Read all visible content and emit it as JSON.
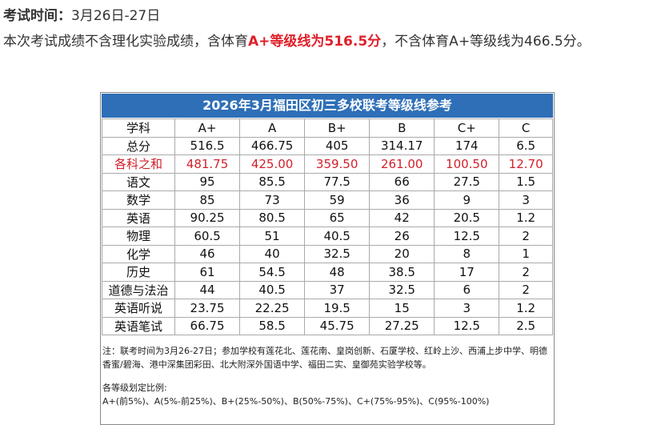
{
  "header": {
    "label": "考试时间：",
    "date": "3月26日-27日"
  },
  "intro": {
    "before": "本次考试成绩不含理化实验成绩，含体育",
    "highlight": "A+等级线为516.5分",
    "after": "，不含体育A+等级线为466.5分。"
  },
  "table": {
    "title": "2026年3月福田区初三多校联考等级线参考",
    "columns": [
      "学科",
      "A+",
      "A",
      "B+",
      "B",
      "C+",
      "C"
    ],
    "rows": [
      [
        "总分",
        "516.5",
        "466.75",
        "405",
        "314.17",
        "174",
        "6.5"
      ],
      [
        "各科之和",
        "481.75",
        "425.00",
        "359.50",
        "261.00",
        "100.50",
        "12.70"
      ],
      [
        "语文",
        "95",
        "85.5",
        "77.5",
        "66",
        "27.5",
        "1.5"
      ],
      [
        "数学",
        "85",
        "73",
        "59",
        "36",
        "9",
        "3"
      ],
      [
        "英语",
        "90.25",
        "80.5",
        "65",
        "42",
        "20.5",
        "1.2"
      ],
      [
        "物理",
        "60.5",
        "51",
        "40.5",
        "26",
        "12.5",
        "2"
      ],
      [
        "化学",
        "46",
        "40",
        "32.5",
        "20",
        "8",
        "1"
      ],
      [
        "历史",
        "61",
        "54.5",
        "48",
        "38.5",
        "17",
        "2"
      ],
      [
        "道德与法治",
        "44",
        "40.5",
        "37",
        "32.5",
        "6",
        "2"
      ],
      [
        "英语听说",
        "23.75",
        "22.25",
        "19.5",
        "15",
        "3",
        "1.2"
      ],
      [
        "英语笔试",
        "66.75",
        "58.5",
        "45.75",
        "27.25",
        "12.5",
        "2.5"
      ]
    ]
  },
  "notes": [
    "注：联考时间为3月26-27日；参加学校有莲花北、莲花南、皇岗创新、石厦学校、红岭上沙、西浦上步中学、明德香蜜/碧海、港中深集团彩田、北大附深外国语中学、福田二实、皇御苑实验学校等。",
    "各等级划定比例:",
    "A+(前5%)、A(5%-前25%)、B+(25%-50%)、B(50%-75%)、C+(75%-95%)、C(95%-100%)"
  ]
}
